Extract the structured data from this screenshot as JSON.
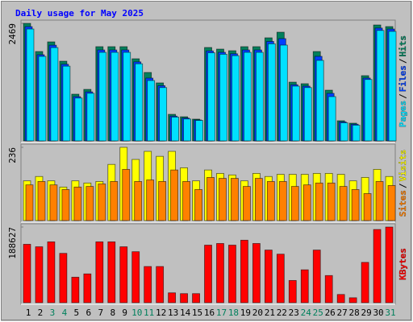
{
  "chart_data": {
    "type": "bar",
    "title": "Daily usage for May 2025",
    "categories": [
      "1",
      "2",
      "3",
      "4",
      "5",
      "6",
      "7",
      "8",
      "9",
      "10",
      "11",
      "12",
      "13",
      "14",
      "15",
      "16",
      "17",
      "18",
      "19",
      "20",
      "21",
      "22",
      "23",
      "24",
      "25",
      "26",
      "27",
      "28",
      "29",
      "30",
      "31"
    ],
    "weekend_indices": [
      2,
      3,
      9,
      10,
      16,
      17,
      23,
      24,
      30
    ],
    "weekend_color": "#00805c",
    "separator": "/",
    "panels": [
      {
        "ylim": [
          0,
          2469
        ],
        "yticks": [
          2469
        ],
        "series": [
          {
            "name": "Hits",
            "color": "#00805c",
            "values": [
              2469,
              1877,
              2080,
              1674,
              981,
              1082,
              1979,
              1979,
              1979,
              1725,
              1437,
              1218,
              558,
              507,
              457,
              1962,
              1928,
              1894,
              1979,
              1979,
              2165,
              2283,
              1234,
              1201,
              1877,
              1065,
              423,
              372,
              1370,
              2435,
              2401
            ]
          },
          {
            "name": "Files",
            "color": "#0040ff",
            "values": [
              2400,
              1810,
              2010,
              1610,
              930,
              1030,
              1910,
              1910,
              1910,
              1660,
              1319,
              1160,
              520,
              480,
              440,
              1890,
              1860,
              1830,
              1910,
              1910,
              2090,
              2148,
              1180,
              1150,
              1776,
              998,
              400,
              350,
              1320,
              2370,
              2350
            ]
          },
          {
            "name": "Pages",
            "color": "#00e0ff",
            "values": [
              2350,
              1775,
              1960,
              1570,
              900,
              1000,
              1860,
              1860,
              1860,
              1620,
              1268,
              1120,
              500,
              460,
              430,
              1850,
              1820,
              1790,
              1860,
              1860,
              2040,
              2012,
              1150,
              1120,
              1691,
              930,
              380,
              330,
              1290,
              2320,
              2300
            ]
          }
        ]
      },
      {
        "ylim": [
          0,
          236
        ],
        "yticks": [
          236
        ],
        "series": [
          {
            "name": "Visits",
            "color": "#ffff00",
            "values": [
              128,
              142,
              128,
              108,
              128,
              121,
              126,
              181,
              236,
              197,
              223,
              207,
              223,
              170,
              128,
              163,
              152,
              147,
              128,
              152,
              142,
              149,
              149,
              149,
              152,
              152,
              149,
              128,
              139,
              165,
              142
            ]
          },
          {
            "name": "Sites",
            "color": "#ff8000",
            "values": [
              115,
              126,
              115,
              100,
              108,
              110,
              118,
              126,
              165,
              126,
              131,
              126,
              163,
              126,
              100,
              139,
              136,
              136,
              110,
              136,
              126,
              126,
              110,
              115,
              121,
              121,
              110,
              100,
              87,
              126,
              113
            ]
          }
        ]
      },
      {
        "ylim": [
          0,
          188627
        ],
        "yticks": [
          188627
        ],
        "series": [
          {
            "name": "KBytes",
            "color": "#ff0000",
            "values": [
              145600,
              139400,
              151700,
              123000,
              63600,
              71800,
              151700,
              151700,
              139400,
              127100,
              90200,
              90200,
              24600,
              22600,
              22600,
              143500,
              147600,
              143500,
              155800,
              147600,
              131200,
              121000,
              55400,
              82000,
              131200,
              67700,
              20500,
              12300,
              100500,
              182500,
              188627
            ]
          }
        ]
      }
    ]
  }
}
